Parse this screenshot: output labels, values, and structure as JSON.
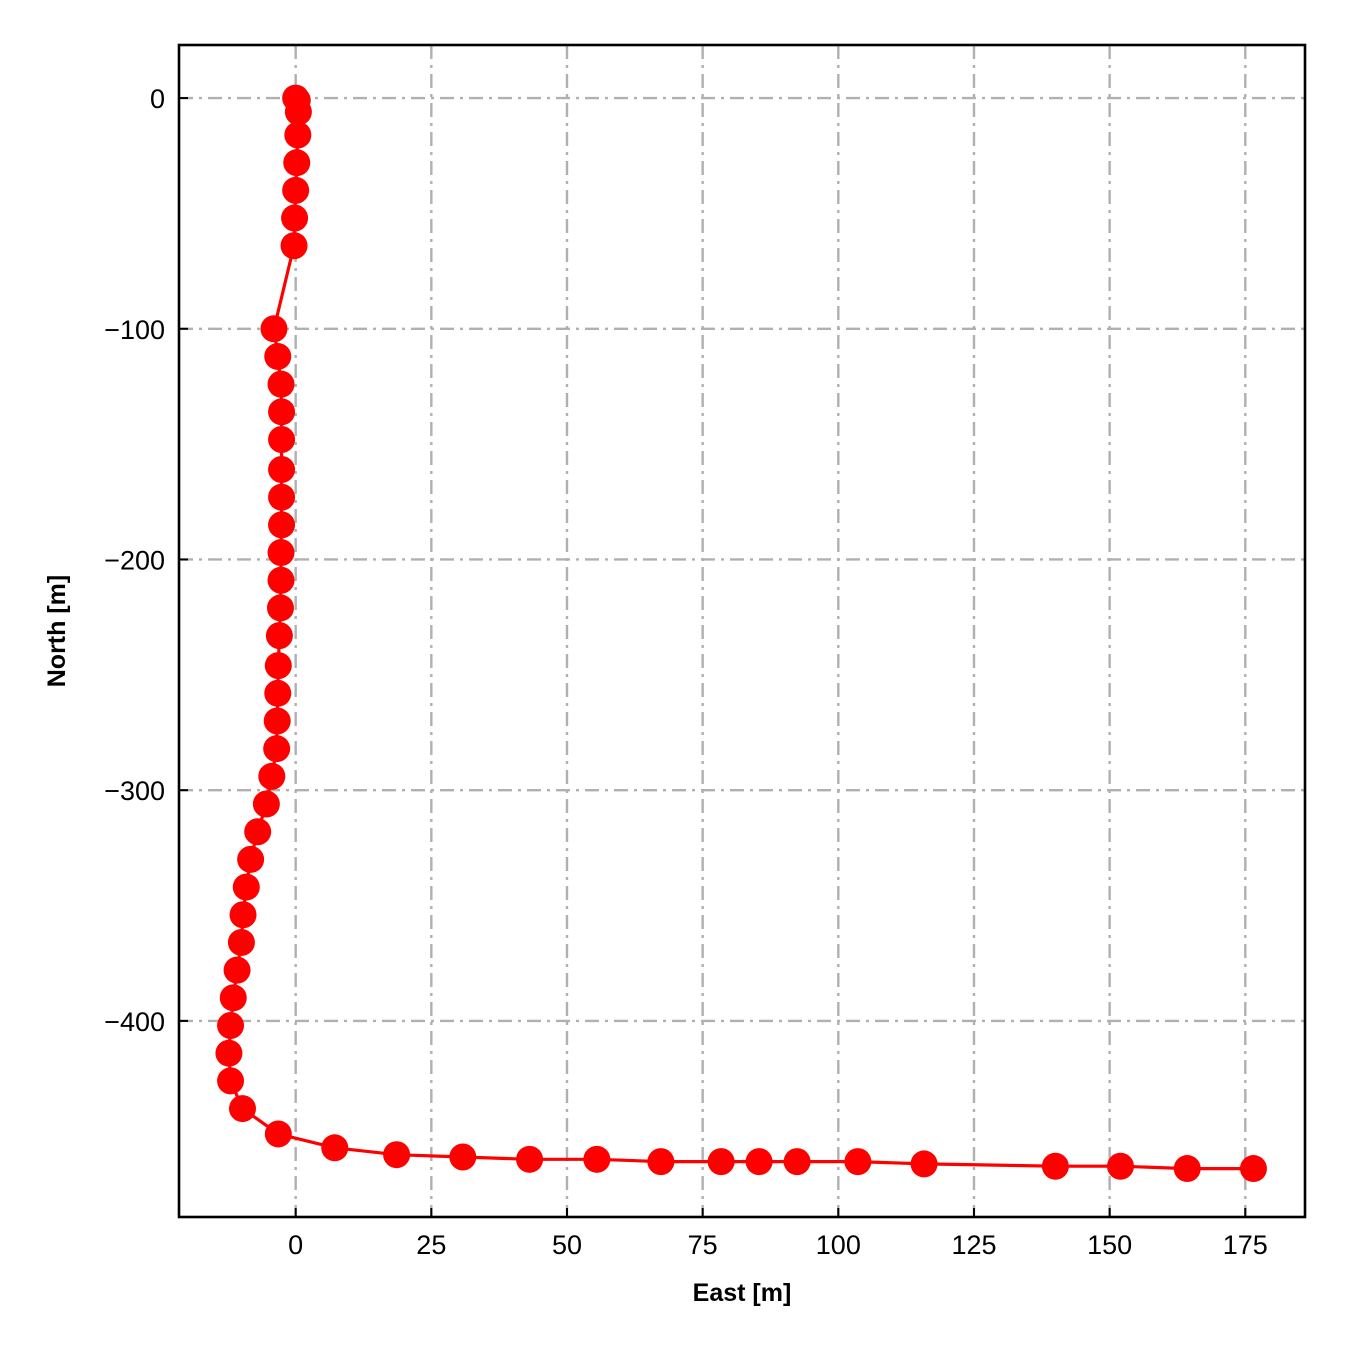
{
  "chart_data": {
    "type": "line",
    "xlabel": "East [m]",
    "ylabel": "North [m]",
    "xlim": [
      -21.5,
      186
    ],
    "ylim": [
      -485,
      23
    ],
    "xticks": [
      0,
      25,
      50,
      75,
      100,
      125,
      150,
      175
    ],
    "yticks": [
      0,
      -100,
      -200,
      -300,
      -400
    ],
    "xtick_labels": [
      "0",
      "25",
      "50",
      "75",
      "100",
      "125",
      "150",
      "175"
    ],
    "ytick_labels": [
      "0",
      "−100",
      "−200",
      "−300",
      "−400"
    ],
    "grid": true,
    "series": [
      {
        "color": "#ff0000",
        "marker": "circle",
        "x": [
          0,
          0.3,
          0.5,
          0.4,
          0.2,
          0,
          -0.2,
          -0.3,
          -4,
          -3.3,
          -2.7,
          -2.6,
          -2.6,
          -2.6,
          -2.6,
          -2.6,
          -2.7,
          -2.7,
          -2.8,
          -3.0,
          -3.2,
          -3.3,
          -3.4,
          -3.5,
          -4.4,
          -5.4,
          -7.0,
          -8.3,
          -9.1,
          -9.7,
          -10.0,
          -10.8,
          -11.5,
          -12.0,
          -12.3,
          -12.0,
          -9.8,
          -3.2,
          7.2,
          18.6,
          30.8,
          43.1,
          55.5,
          67.3,
          78.4,
          85.4,
          92.4,
          103.6,
          115.8,
          140.0,
          152.0,
          164.3,
          176.5
        ],
        "y": [
          0,
          -1,
          -6,
          -16,
          -28,
          -40,
          -52,
          -64,
          -100,
          -112,
          -124,
          -136,
          -148,
          -161,
          -173,
          -185,
          -197,
          -209,
          -221,
          -233,
          -246,
          -258,
          -270,
          -282,
          -294,
          -306,
          -318,
          -330,
          -342,
          -354,
          -366,
          -378,
          -390,
          -402,
          -414,
          -426,
          -438,
          -449,
          -455,
          -458,
          -459,
          -460,
          -460,
          -461,
          -461,
          -461,
          -461,
          -461,
          -462,
          -463,
          -463,
          -464,
          -464
        ]
      }
    ]
  }
}
